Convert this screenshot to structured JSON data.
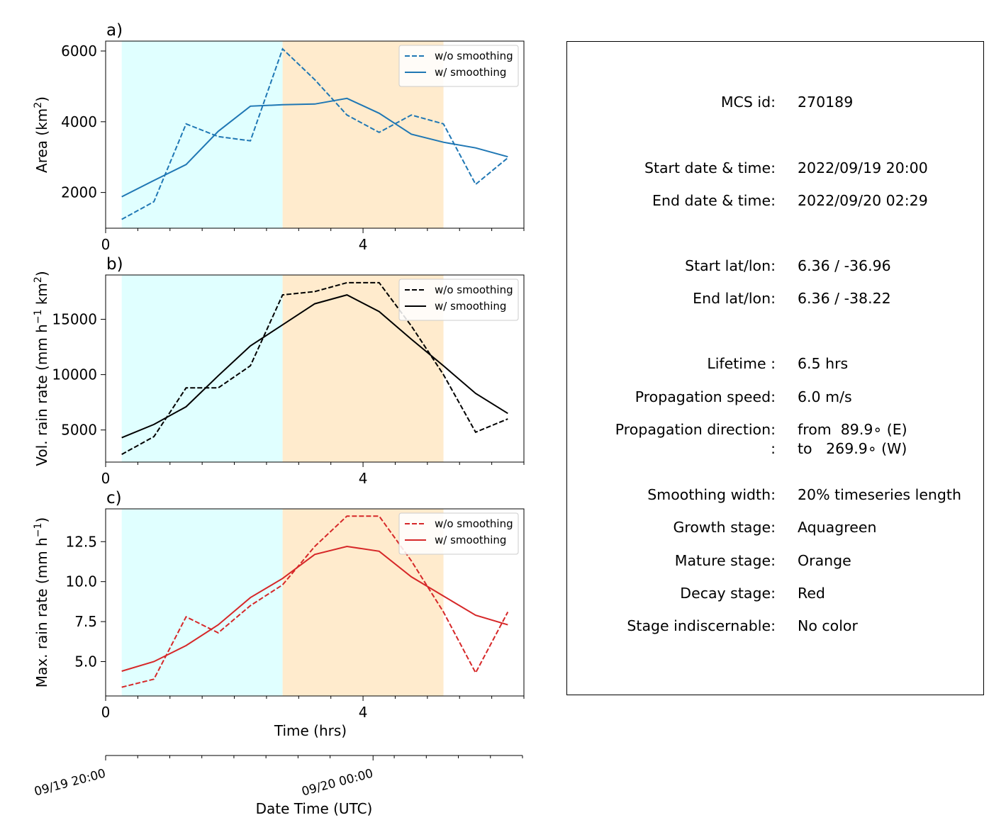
{
  "colors": {
    "growth_fill": "#e0ffff",
    "mature_fill": "#ffebcd",
    "area": "#1f77b4",
    "vol": "#000000",
    "max": "#d62728"
  },
  "chart_data": [
    {
      "type": "line",
      "panel_label": "a)",
      "ylabel": "Area  (km",
      "ylabel_sup": "2",
      "ylabel_suffix": ")",
      "xlim": [
        0,
        6.5
      ],
      "ylim": [
        990,
        6280
      ],
      "xticks": [
        0,
        4
      ],
      "xtick_labels": [
        "0",
        "4"
      ],
      "yticks": [
        2000,
        4000,
        6000
      ],
      "ytick_labels": [
        "2000",
        "4000",
        "6000"
      ],
      "shaded": [
        {
          "stage": "growth",
          "x": [
            0.25,
            2.75
          ]
        },
        {
          "stage": "mature",
          "x": [
            2.75,
            5.25
          ]
        }
      ],
      "x": [
        0.25,
        0.75,
        1.25,
        1.75,
        2.25,
        2.75,
        3.25,
        3.75,
        4.25,
        4.75,
        5.25,
        5.75,
        6.25
      ],
      "series": [
        {
          "name": "w/o smoothing",
          "style": "dashed",
          "values": [
            1240,
            1740,
            3940,
            3580,
            3460,
            6060,
            5190,
            4190,
            3700,
            4190,
            3940,
            2230,
            2980
          ]
        },
        {
          "name": "w/ smoothing",
          "style": "solid",
          "values": [
            1880,
            2340,
            2790,
            3730,
            4440,
            4480,
            4500,
            4660,
            4240,
            3650,
            3420,
            3260,
            3010
          ]
        }
      ],
      "legend": "top-right"
    },
    {
      "type": "line",
      "panel_label": "b)",
      "ylabel": "Vol. rain rate (mm h",
      "ylabel_sup": "−1",
      "ylabel_suffix": " km",
      "ylabel_sup2": "2",
      "ylabel_suffix2": ")",
      "xlim": [
        0,
        6.5
      ],
      "ylim": [
        2100,
        19000
      ],
      "xticks": [
        0,
        4
      ],
      "xtick_labels": [
        "0",
        "4"
      ],
      "yticks": [
        5000,
        10000,
        15000
      ],
      "ytick_labels": [
        "5000",
        "10000",
        "15000"
      ],
      "shaded": [
        {
          "stage": "growth",
          "x": [
            0.25,
            2.75
          ]
        },
        {
          "stage": "mature",
          "x": [
            2.75,
            5.25
          ]
        }
      ],
      "x": [
        0.25,
        0.75,
        1.25,
        1.75,
        2.25,
        2.75,
        3.25,
        3.75,
        4.25,
        4.75,
        5.25,
        5.75,
        6.25
      ],
      "series": [
        {
          "name": "w/o smoothing",
          "style": "dashed",
          "values": [
            2800,
            4400,
            8800,
            8800,
            10800,
            17200,
            17500,
            18300,
            18300,
            14400,
            10000,
            4800,
            6000
          ]
        },
        {
          "name": "w/ smoothing",
          "style": "solid",
          "values": [
            4300,
            5500,
            7100,
            9900,
            12600,
            14500,
            16400,
            17200,
            15700,
            13200,
            10800,
            8300,
            6500
          ]
        }
      ],
      "legend": "top-right"
    },
    {
      "type": "line",
      "panel_label": "c)",
      "ylabel": "Max. rain rate  (mm h",
      "ylabel_sup": "−1",
      "ylabel_suffix": ")",
      "xlabel": "Time (hrs)",
      "xlim": [
        0,
        6.5
      ],
      "ylim": [
        2.85,
        14.55
      ],
      "xticks": [
        0,
        4
      ],
      "xtick_labels": [
        "0",
        "4"
      ],
      "yticks": [
        5.0,
        7.5,
        10.0,
        12.5
      ],
      "ytick_labels": [
        "5.0",
        "7.5",
        "10.0",
        "12.5"
      ],
      "shaded": [
        {
          "stage": "growth",
          "x": [
            0.25,
            2.75
          ]
        },
        {
          "stage": "mature",
          "x": [
            2.75,
            5.25
          ]
        }
      ],
      "x": [
        0.25,
        0.75,
        1.25,
        1.75,
        2.25,
        2.75,
        3.25,
        3.75,
        4.25,
        4.75,
        5.25,
        5.75,
        6.25
      ],
      "series": [
        {
          "name": "w/o smoothing",
          "style": "dashed",
          "values": [
            3.4,
            3.9,
            7.8,
            6.8,
            8.5,
            9.8,
            12.2,
            14.1,
            14.1,
            11.3,
            8.1,
            4.3,
            8.1
          ]
        },
        {
          "name": "w/ smoothing",
          "style": "solid",
          "values": [
            4.4,
            5.0,
            6.0,
            7.3,
            9.0,
            10.2,
            11.7,
            12.2,
            11.9,
            10.3,
            9.1,
            7.9,
            7.3
          ]
        }
      ],
      "legend": "top-right"
    }
  ],
  "datetime_axis": {
    "label": "Date Time (UTC)",
    "xlim_hours": [
      0,
      6.5
    ],
    "ticks": [
      0,
      4.17
    ],
    "tick_labels": [
      "09/19 20:00",
      "09/20 00:00"
    ],
    "minor_tick_interval_hours": 0.5
  },
  "info": {
    "mcs_id": {
      "key": "MCS id:",
      "value": "270189"
    },
    "start_time": {
      "key": "Start date & time:",
      "value": "2022/09/19 20:00"
    },
    "end_time": {
      "key": "End date & time:",
      "value": "2022/09/20 02:29"
    },
    "start_latlon": {
      "key": "Start lat/lon:",
      "value": "6.36 / -36.96"
    },
    "end_latlon": {
      "key": "End lat/lon:",
      "value": "6.36 / -38.22"
    },
    "lifetime": {
      "key": "Lifetime :",
      "value": "6.5 hrs"
    },
    "speed": {
      "key": "Propagation speed:",
      "value": "6.0 m/s"
    },
    "direction_from": {
      "key": "Propagation direction:",
      "value": "from  89.9∘ (E)"
    },
    "direction_to": {
      "key": ":",
      "value": "to   269.9∘ (W)"
    },
    "smoothing": {
      "key": "Smoothing width:",
      "value": "20% timeseries length"
    },
    "growth": {
      "key": "Growth stage:",
      "value": "Aquagreen"
    },
    "mature": {
      "key": "Mature stage:",
      "value": "Orange"
    },
    "decay": {
      "key": "Decay stage:",
      "value": "Red"
    },
    "indiscernable": {
      "key": "Stage indiscernable:",
      "value": "No color"
    }
  }
}
